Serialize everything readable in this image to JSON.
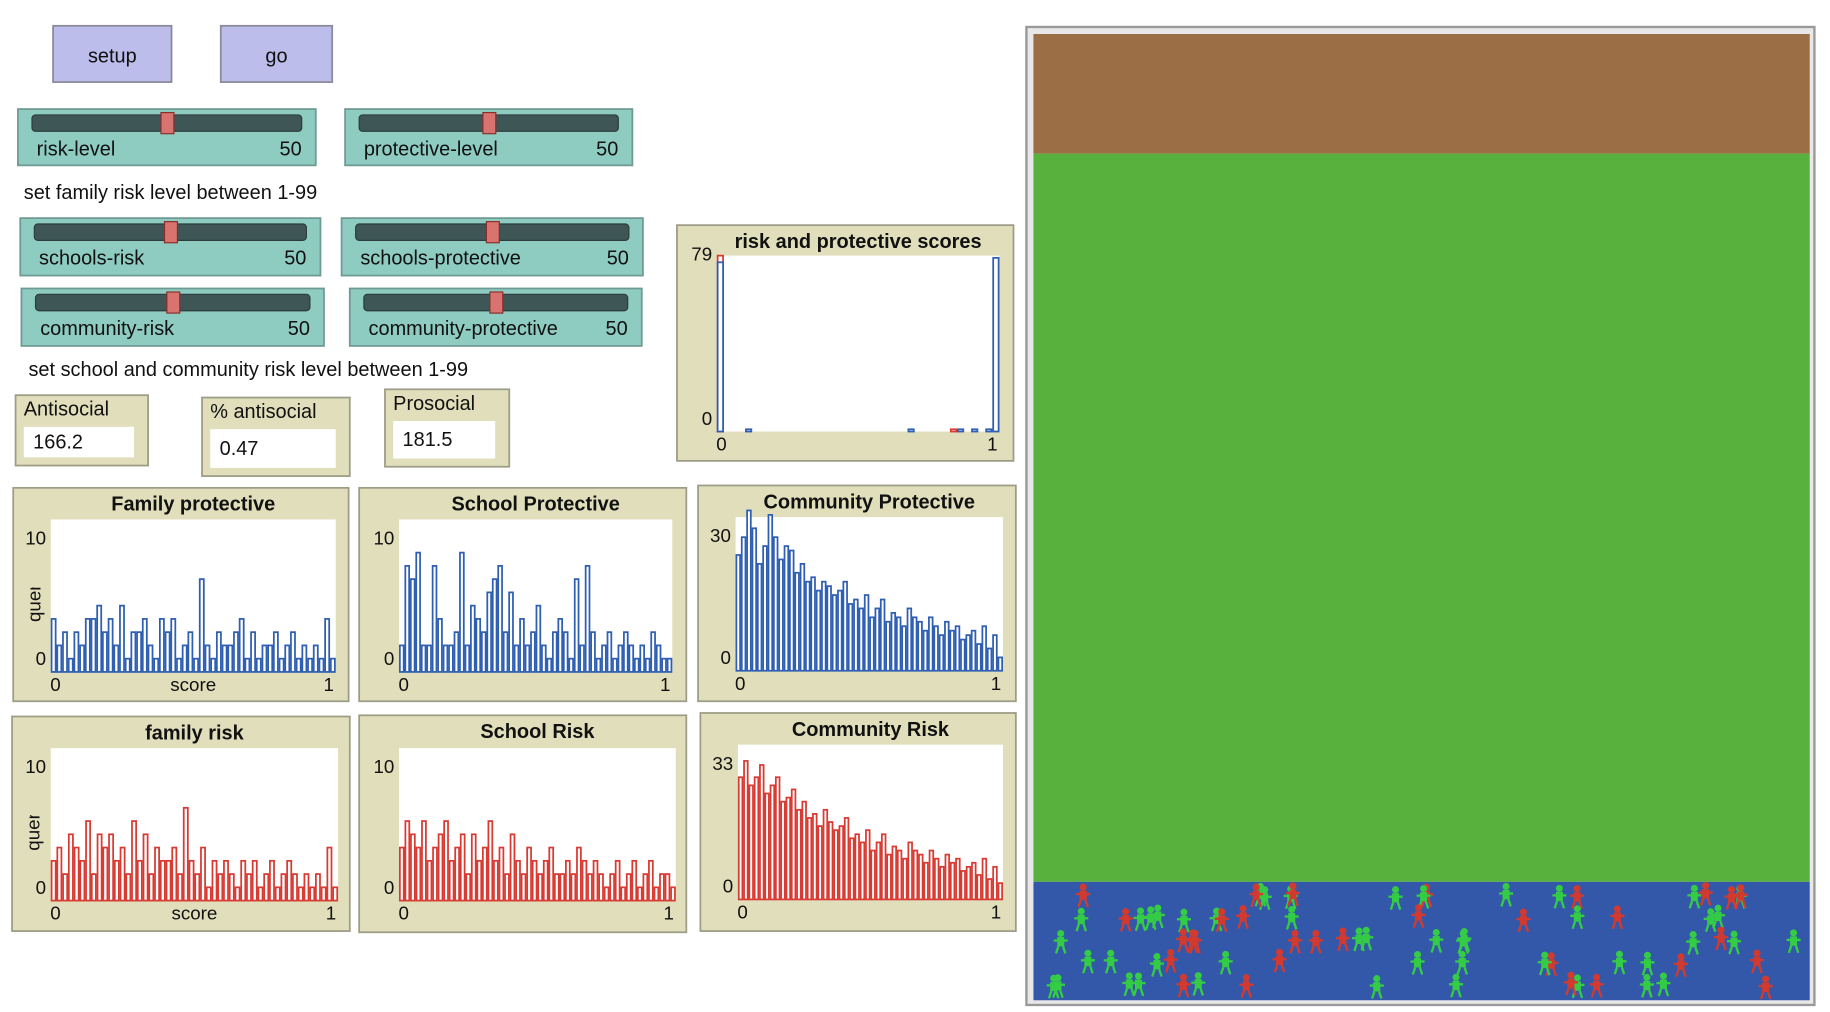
{
  "buttons": [
    {
      "label": "setup"
    },
    {
      "label": "go"
    }
  ],
  "sliders": [
    {
      "label": "risk-level",
      "value": 50
    },
    {
      "label": "protective-level",
      "value": 50
    },
    {
      "label": "schools-risk",
      "value": 50
    },
    {
      "label": "schools-protective",
      "value": 50
    },
    {
      "label": "community-risk",
      "value": 50
    },
    {
      "label": "community-protective",
      "value": 50
    }
  ],
  "notes": [
    "set family risk level between 1-99",
    "set school and community risk level between 1-99"
  ],
  "monitors": [
    {
      "label": "Antisocial",
      "value": 166.2
    },
    {
      "label": "% antisocial",
      "value": 0.47
    },
    {
      "label": "Prosocial",
      "value": 181.5
    }
  ],
  "plots": [
    {
      "type": "histogram",
      "title": "risk and protective scores",
      "xlim": [
        0,
        1
      ],
      "ylim": [
        0,
        79
      ],
      "xticks": [
        0,
        1
      ],
      "yticks": [
        0,
        79
      ],
      "series": [
        {
          "color": "#d93a32",
          "values": [
            79,
            0,
            0,
            0,
            0,
            0,
            0,
            0,
            0,
            0,
            0,
            0,
            0,
            0,
            0,
            0,
            0,
            0,
            0,
            0,
            0,
            0,
            0,
            0,
            0,
            0,
            0,
            0,
            0,
            0,
            0,
            0,
            0,
            1,
            0,
            0,
            0,
            0,
            0,
            0
          ]
        },
        {
          "color": "#2f5fb3",
          "values": [
            76,
            0,
            0,
            0,
            1,
            0,
            0,
            0,
            0,
            0,
            0,
            0,
            0,
            0,
            0,
            0,
            0,
            0,
            0,
            0,
            0,
            0,
            0,
            0,
            0,
            0,
            0,
            1,
            0,
            0,
            0,
            0,
            0,
            0,
            1,
            0,
            1,
            0,
            1,
            78
          ]
        }
      ]
    },
    {
      "type": "histogram",
      "title": "Family protective",
      "xlabel": "score",
      "ylabel": "frequency",
      "xlim": [
        0,
        1
      ],
      "ylim": [
        0,
        11.5
      ],
      "xticks": [
        0,
        1
      ],
      "yticks": [
        0,
        10
      ],
      "series": [
        {
          "color": "#2f5fb3",
          "values": [
            4,
            2,
            3,
            1,
            3,
            2,
            4,
            4,
            5,
            3,
            4,
            2,
            5,
            1,
            3,
            3,
            4,
            2,
            1,
            4,
            3,
            4,
            1,
            2,
            3,
            1,
            7,
            2,
            1,
            3,
            2,
            2,
            3,
            4,
            1,
            3,
            1,
            2,
            2,
            3,
            1,
            2,
            3,
            1,
            2,
            1,
            2,
            1,
            4,
            1
          ]
        }
      ]
    },
    {
      "type": "histogram",
      "title": "School Protective",
      "xlim": [
        0,
        1
      ],
      "ylim": [
        0,
        11.5
      ],
      "xticks": [
        0,
        1
      ],
      "yticks": [
        0,
        10
      ],
      "series": [
        {
          "color": "#2f5fb3",
          "values": [
            2,
            8,
            7,
            9,
            2,
            2,
            8,
            4,
            2,
            2,
            3,
            9,
            2,
            5,
            4,
            3,
            6,
            7,
            8,
            3,
            6,
            2,
            4,
            2,
            3,
            5,
            2,
            1,
            3,
            4,
            3,
            1,
            7,
            2,
            8,
            3,
            1,
            2,
            3,
            1,
            2,
            3,
            2,
            1,
            2,
            1,
            3,
            2,
            1,
            1
          ]
        }
      ]
    },
    {
      "type": "histogram",
      "title": "Community Protective",
      "xlim": [
        0,
        1
      ],
      "ylim": [
        0,
        34.5
      ],
      "xticks": [
        0,
        1
      ],
      "yticks": [
        0,
        30
      ],
      "series": [
        {
          "color": "#2f5fb3",
          "values": [
            26,
            30,
            36,
            32,
            24,
            28,
            35,
            30,
            25,
            28,
            27,
            22,
            24,
            20,
            21,
            18,
            20,
            19,
            17,
            18,
            20,
            15,
            16,
            14,
            17,
            12,
            14,
            16,
            11,
            13,
            12,
            10,
            14,
            12,
            11,
            9,
            12,
            10,
            8,
            11,
            9,
            10,
            7,
            8,
            9,
            6,
            10,
            5,
            8,
            3
          ]
        }
      ]
    },
    {
      "type": "histogram",
      "title": "family risk",
      "xlabel": "score",
      "ylabel": "frequency",
      "xlim": [
        0,
        1
      ],
      "ylim": [
        0,
        11.5
      ],
      "xticks": [
        0,
        1
      ],
      "yticks": [
        0,
        10
      ],
      "series": [
        {
          "color": "#d93a32",
          "values": [
            3,
            4,
            2,
            5,
            4,
            3,
            6,
            2,
            5,
            4,
            5,
            3,
            4,
            2,
            6,
            3,
            5,
            2,
            4,
            3,
            3,
            4,
            2,
            7,
            3,
            2,
            4,
            1,
            3,
            2,
            3,
            2,
            1,
            3,
            2,
            3,
            1,
            2,
            3,
            1,
            2,
            3,
            2,
            1,
            2,
            1,
            2,
            1,
            4,
            1
          ]
        }
      ]
    },
    {
      "type": "histogram",
      "title": "School Risk",
      "xlim": [
        0,
        1
      ],
      "ylim": [
        0,
        11.5
      ],
      "xticks": [
        0,
        1
      ],
      "yticks": [
        0,
        10
      ],
      "series": [
        {
          "color": "#d93a32",
          "values": [
            4,
            6,
            5,
            4,
            6,
            3,
            4,
            5,
            6,
            3,
            4,
            5,
            2,
            5,
            3,
            4,
            6,
            3,
            4,
            2,
            5,
            3,
            2,
            4,
            3,
            2,
            3,
            4,
            2,
            2,
            3,
            2,
            4,
            3,
            2,
            3,
            2,
            1,
            2,
            3,
            1,
            2,
            3,
            1,
            2,
            3,
            1,
            2,
            2,
            1
          ]
        }
      ]
    },
    {
      "type": "histogram",
      "title": "Community Risk",
      "xlim": [
        0,
        1
      ],
      "ylim": [
        0,
        38
      ],
      "xticks": [
        0,
        1
      ],
      "yticks": [
        0,
        33
      ],
      "series": [
        {
          "color": "#d93a32",
          "values": [
            30,
            34,
            28,
            30,
            33,
            26,
            28,
            30,
            24,
            25,
            27,
            22,
            24,
            20,
            21,
            18,
            22,
            19,
            17,
            18,
            20,
            15,
            16,
            14,
            17,
            12,
            14,
            16,
            11,
            13,
            12,
            10,
            14,
            12,
            11,
            9,
            12,
            10,
            8,
            11,
            9,
            10,
            7,
            8,
            9,
            6,
            10,
            5,
            8,
            4
          ]
        }
      ]
    }
  ]
}
